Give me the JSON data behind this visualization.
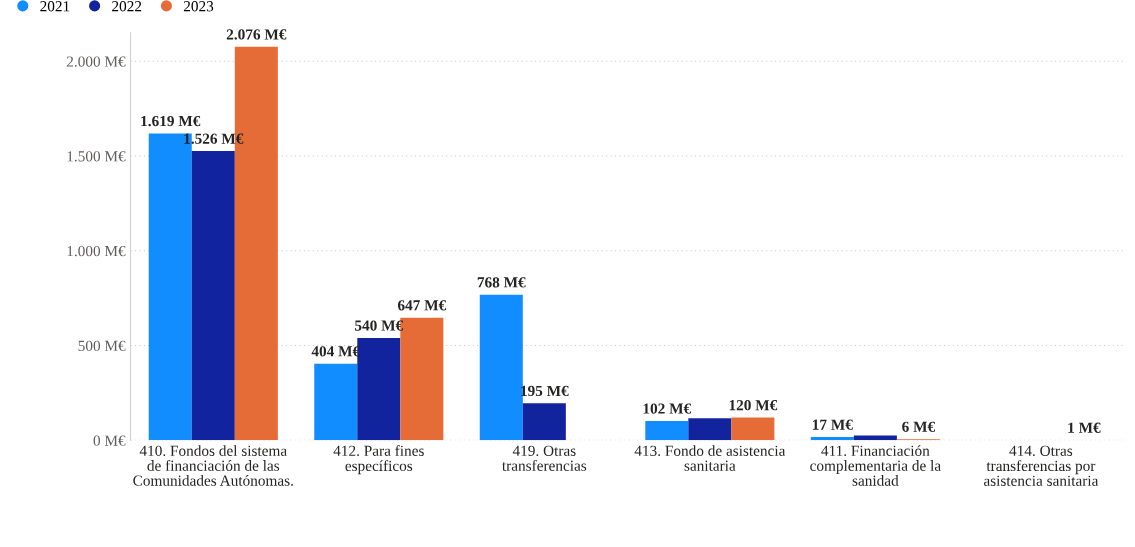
{
  "chart_data": {
    "type": "bar",
    "categories": [
      "410. Fondos del sistema de financiación de las Comunidades Autónomas.",
      "412. Para fines específicos",
      "419. Otras transferencias",
      "413. Fondo de asistencia sanitaria",
      "411. Financiación complementaria de la sanidad",
      "414. Otras transferencias por asistencia sanitaria"
    ],
    "series": [
      {
        "name": "2021",
        "color": "#118dff",
        "values": [
          1619,
          404,
          768,
          102,
          17,
          null
        ],
        "value_labels": [
          "1.619 M€",
          "404 M€",
          "768 M€",
          "102 M€",
          "17 M€",
          null
        ]
      },
      {
        "name": "2022",
        "color": "#12239e",
        "values": [
          1526,
          540,
          195,
          117,
          25,
          null
        ],
        "value_labels": [
          "1.526 M€",
          "540 M€",
          "195 M€",
          null,
          null,
          null
        ]
      },
      {
        "name": "2023",
        "color": "#e66c37",
        "values": [
          2076,
          647,
          null,
          120,
          6,
          1
        ],
        "value_labels": [
          "2.076 M€",
          "647 M€",
          null,
          "120 M€",
          "6 M€",
          "1 M€"
        ]
      }
    ],
    "ylim": [
      0,
      2150
    ],
    "yticks": [
      {
        "value": 0,
        "label": "0 M€"
      },
      {
        "value": 500,
        "label": "500 M€"
      },
      {
        "value": 1000,
        "label": "1.000 M€"
      },
      {
        "value": 1500,
        "label": "1.500 M€"
      },
      {
        "value": 2000,
        "label": "2.000 M€"
      }
    ],
    "grid": "y",
    "legend": "top left"
  }
}
